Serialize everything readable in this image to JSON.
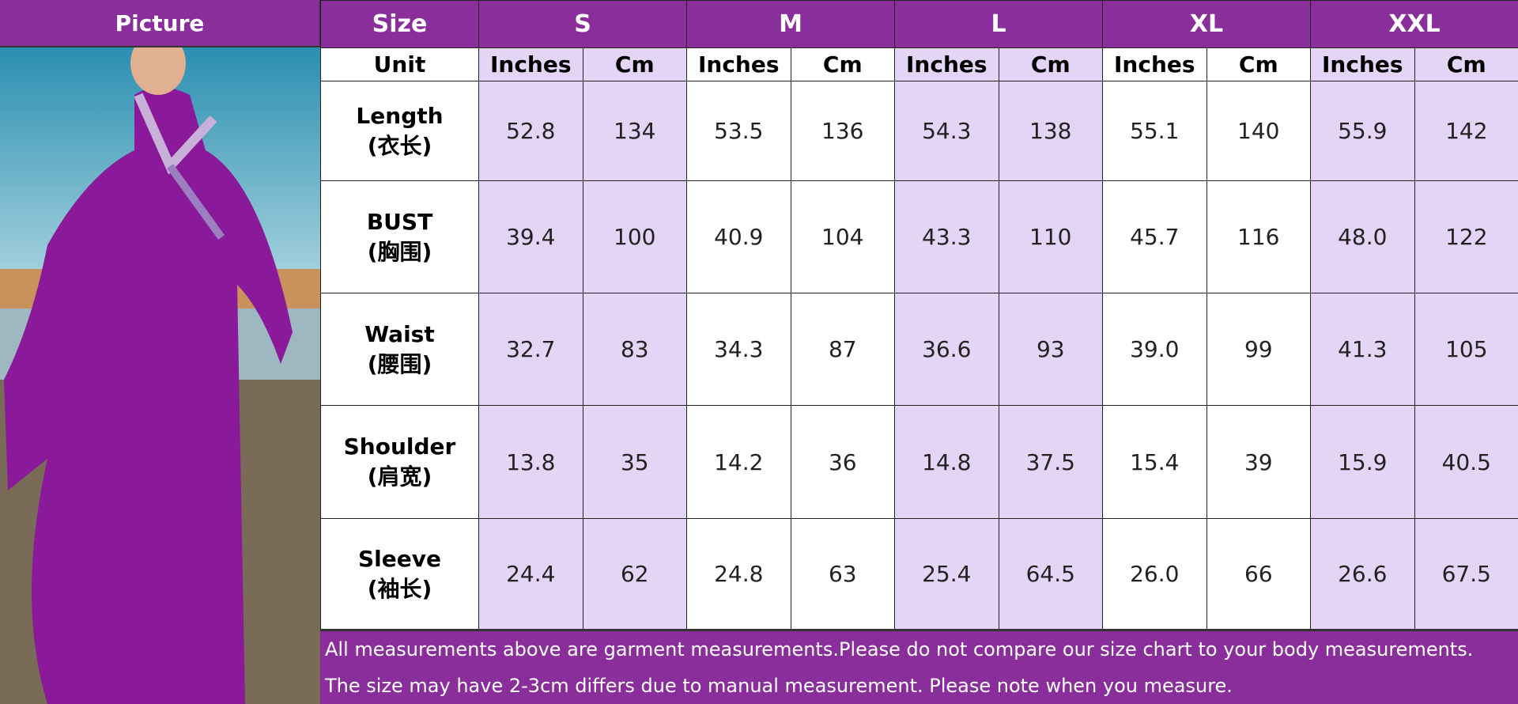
{
  "header": {
    "picture": "Picture",
    "size": "Size",
    "sizes": [
      "S",
      "M",
      "L",
      "XL",
      "XXL"
    ]
  },
  "unit_row": {
    "label": "Unit",
    "inches": "Inches",
    "cm": "Cm"
  },
  "rows": [
    {
      "name": "Length",
      "cn": "(衣长)",
      "values": [
        "52.8",
        "134",
        "53.5",
        "136",
        "54.3",
        "138",
        "55.1",
        "140",
        "55.9",
        "142"
      ]
    },
    {
      "name": "BUST",
      "cn": "(胸围)",
      "values": [
        "39.4",
        "100",
        "40.9",
        "104",
        "43.3",
        "110",
        "45.7",
        "116",
        "48.0",
        "122"
      ]
    },
    {
      "name": "Waist",
      "cn": "(腰围)",
      "values": [
        "32.7",
        "83",
        "34.3",
        "87",
        "36.6",
        "93",
        "39.0",
        "99",
        "41.3",
        "105"
      ]
    },
    {
      "name": "Shoulder",
      "cn": "(肩宽)",
      "values": [
        "13.8",
        "35",
        "14.2",
        "36",
        "14.8",
        "37.5",
        "15.4",
        "39",
        "15.9",
        "40.5"
      ]
    },
    {
      "name": "Sleeve",
      "cn": "(袖长)",
      "values": [
        "24.4",
        "62",
        "24.8",
        "63",
        "25.4",
        "64.5",
        "26.0",
        "66",
        "26.6",
        "67.5"
      ]
    }
  ],
  "footer": [
    "All measurements above are garment measurements.Please do not compare our size chart to your body measurements.",
    "The size may have 2-3cm differs due to manual measurement. Please note when you measure."
  ],
  "colors": {
    "header": "#8a2e9b",
    "shade": "#e4d4f6"
  }
}
